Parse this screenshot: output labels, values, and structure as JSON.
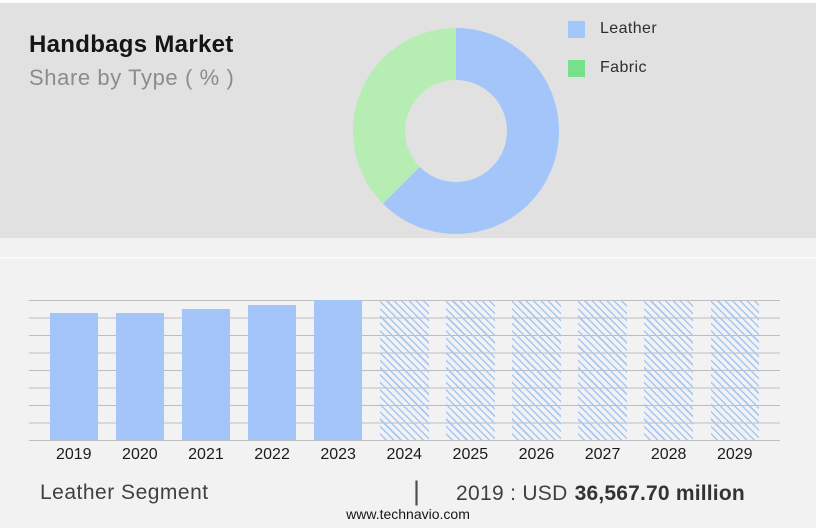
{
  "header": {
    "title": "Handbags Market",
    "subtitle": "Share by Type ( % )"
  },
  "footer": {
    "segment_label": "Leather Segment",
    "separator": "|",
    "stat_prefix": "2019 : USD",
    "stat_value": "36,567.70 million",
    "website": "www.technavio.com"
  },
  "chart_data": [
    {
      "type": "pie",
      "title": "Handbags Market — Share by Type ( % )",
      "donut": true,
      "unit": "%",
      "legend_position": "right",
      "series": [
        {
          "name": "Leather",
          "value": 62.5,
          "color": "#a3c5f9",
          "legend_color": "#a3c7fa"
        },
        {
          "name": "Fabric",
          "value": 37.5,
          "color": "#b6edb2",
          "legend_color": "#77e08b"
        }
      ]
    },
    {
      "type": "bar",
      "title": "Leather Segment",
      "categories": [
        "2019",
        "2020",
        "2021",
        "2022",
        "2023",
        "2024",
        "2025",
        "2026",
        "2027",
        "2028",
        "2029"
      ],
      "values": [
        90.5,
        91,
        93.5,
        96.5,
        100,
        99.5,
        99.5,
        99.5,
        99.5,
        99.5,
        99.5
      ],
      "forecast_start_index": 5,
      "bar_color": "#a3c5f9",
      "forecast_style": "diagonal-hatch",
      "hatch_color": "#a6c7f5",
      "gridline_color": "#bdbdbd",
      "grid": true,
      "ylim": [
        0,
        100
      ],
      "gridline_interval": 12.5,
      "y_axis_labels_visible": false,
      "annotation": {
        "year": "2019",
        "value": "USD 36,567.70 million"
      }
    }
  ]
}
